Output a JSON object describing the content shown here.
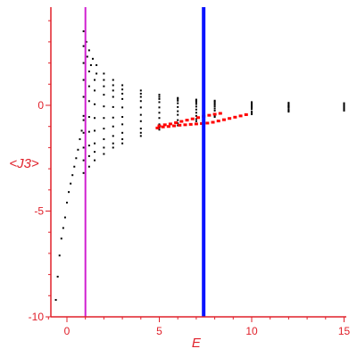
{
  "chart_data": {
    "type": "scatter",
    "xlabel": "E",
    "ylabel": "<J3>",
    "xlim": [
      -1,
      15.3
    ],
    "ylim": [
      -10,
      4.5
    ],
    "x_ticks": [
      {
        "value": 0,
        "label": "0"
      },
      {
        "value": 5,
        "label": "5"
      },
      {
        "value": 10,
        "label": "10"
      },
      {
        "value": 15,
        "label": "15"
      }
    ],
    "y_ticks": [
      {
        "value": 0,
        "label": "0"
      },
      {
        "value": -5,
        "label": "-5"
      },
      {
        "value": -10,
        "label": "-10"
      }
    ],
    "grid": false,
    "legend": "none",
    "colors": {
      "axis": "#e0202a",
      "points": "#000000",
      "highlight_points": "#ff0000",
      "line_a": "#d020d0",
      "line_b": "#0a14ff"
    },
    "vertical_lines": [
      {
        "x": 1.0,
        "color": "#d020d0"
      },
      {
        "x": 7.4,
        "color": "#0a14ff"
      }
    ],
    "series": [
      {
        "color": "#000000",
        "points": [
          [
            -0.6,
            -9.2
          ],
          [
            -0.5,
            -8.1
          ],
          [
            -0.4,
            -7.1
          ],
          [
            -0.3,
            -6.3
          ],
          [
            -0.2,
            -5.8
          ],
          [
            -0.1,
            -5.3
          ],
          [
            0,
            -4.6
          ],
          [
            0.1,
            -4.1
          ],
          [
            0.2,
            -3.7
          ],
          [
            0.3,
            -3.3
          ],
          [
            0.4,
            -2.9
          ],
          [
            0.5,
            -2.5
          ],
          [
            0.6,
            -2.1
          ],
          [
            0.7,
            -1.6
          ],
          [
            0.8,
            -1.2
          ],
          [
            0.9,
            -0.7
          ]
        ]
      },
      {
        "color": "#000000",
        "points": [
          [
            0.9,
            3.5
          ],
          [
            1.05,
            3.0
          ],
          [
            1.2,
            2.6
          ],
          [
            1.4,
            2.2
          ],
          [
            1.6,
            1.9
          ],
          [
            2.0,
            1.5
          ],
          [
            2.5,
            1.2
          ],
          [
            3.0,
            0.95
          ],
          [
            4.0,
            0.7
          ],
          [
            5.0,
            0.5
          ],
          [
            6.0,
            0.35
          ],
          [
            7.0,
            0.27
          ],
          [
            8.0,
            0.22
          ],
          [
            10.0,
            0.15
          ],
          [
            12.0,
            0.12
          ],
          [
            15.0,
            0.1
          ]
        ]
      },
      {
        "color": "#000000",
        "points": [
          [
            0.9,
            2.8
          ],
          [
            1.1,
            2.3
          ],
          [
            1.3,
            1.9
          ],
          [
            1.6,
            1.5
          ],
          [
            2.0,
            1.2
          ],
          [
            2.5,
            0.95
          ],
          [
            3.0,
            0.75
          ],
          [
            4.0,
            0.55
          ],
          [
            5.0,
            0.4
          ],
          [
            6.0,
            0.3
          ],
          [
            7.0,
            0.22
          ],
          [
            8.0,
            0.17
          ],
          [
            10.0,
            0.1
          ],
          [
            12.0,
            0.08
          ],
          [
            15.0,
            0.05
          ]
        ]
      },
      {
        "color": "#000000",
        "points": [
          [
            0.9,
            2.0
          ],
          [
            1.2,
            1.6
          ],
          [
            1.5,
            1.2
          ],
          [
            2.0,
            0.9
          ],
          [
            2.5,
            0.7
          ],
          [
            3.0,
            0.55
          ],
          [
            4.0,
            0.4
          ],
          [
            5.0,
            0.3
          ],
          [
            6.0,
            0.22
          ],
          [
            7.0,
            0.15
          ],
          [
            8.0,
            0.1
          ],
          [
            10.0,
            0.05
          ],
          [
            12.0,
            0.02
          ],
          [
            15.0,
            0.0
          ]
        ]
      },
      {
        "color": "#000000",
        "points": [
          [
            0.9,
            1.2
          ],
          [
            1.2,
            0.9
          ],
          [
            1.5,
            0.7
          ],
          [
            2.0,
            0.5
          ],
          [
            2.5,
            0.4
          ],
          [
            3.0,
            0.3
          ],
          [
            4.0,
            0.2
          ],
          [
            5.0,
            0.15
          ],
          [
            6.0,
            0.1
          ],
          [
            7.0,
            0.06
          ],
          [
            8.0,
            0.03
          ],
          [
            10.0,
            0.0
          ],
          [
            12.0,
            -0.02
          ],
          [
            15.0,
            -0.05
          ]
        ]
      },
      {
        "color": "#000000",
        "points": [
          [
            0.9,
            0.4
          ],
          [
            1.2,
            0.2
          ],
          [
            1.5,
            0.05
          ],
          [
            2.0,
            -0.05
          ],
          [
            2.5,
            -0.08
          ],
          [
            3.0,
            -0.1
          ],
          [
            4.0,
            -0.1
          ],
          [
            5.0,
            -0.1
          ],
          [
            6.0,
            -0.08
          ],
          [
            7.0,
            -0.06
          ],
          [
            8.0,
            -0.05
          ],
          [
            10.0,
            -0.05
          ],
          [
            12.0,
            -0.05
          ],
          [
            15.0,
            -0.05
          ]
        ]
      },
      {
        "color": "#000000",
        "points": [
          [
            0.9,
            -0.5
          ],
          [
            1.2,
            -0.55
          ],
          [
            1.5,
            -0.6
          ],
          [
            2.0,
            -0.6
          ],
          [
            2.5,
            -0.58
          ],
          [
            3.0,
            -0.55
          ],
          [
            4.0,
            -0.45
          ],
          [
            5.0,
            -0.35
          ],
          [
            6.0,
            -0.28
          ],
          [
            7.0,
            -0.2
          ],
          [
            8.0,
            -0.15
          ],
          [
            10.0,
            -0.1
          ],
          [
            12.0,
            -0.08
          ],
          [
            15.0,
            -0.07
          ]
        ]
      },
      {
        "color": "#000000",
        "points": [
          [
            0.9,
            -1.3
          ],
          [
            1.2,
            -1.25
          ],
          [
            1.5,
            -1.2
          ],
          [
            2.0,
            -1.1
          ],
          [
            2.5,
            -1.0
          ],
          [
            3.0,
            -0.9
          ],
          [
            4.0,
            -0.75
          ],
          [
            5.0,
            -0.6
          ],
          [
            6.0,
            -0.45
          ],
          [
            7.0,
            -0.35
          ],
          [
            8.0,
            -0.25
          ],
          [
            10.0,
            -0.18
          ],
          [
            12.0,
            -0.12
          ],
          [
            15.0,
            -0.1
          ]
        ]
      },
      {
        "color": "#000000",
        "points": [
          [
            0.9,
            -2.0
          ],
          [
            1.2,
            -1.9
          ],
          [
            1.5,
            -1.8
          ],
          [
            2.0,
            -1.6
          ],
          [
            2.5,
            -1.45
          ],
          [
            3.0,
            -1.3
          ],
          [
            4.0,
            -1.1
          ],
          [
            5.0,
            -0.9
          ],
          [
            6.0,
            -0.7
          ],
          [
            7.0,
            -0.5
          ],
          [
            8.0,
            -0.4
          ],
          [
            10.0,
            -0.3
          ],
          [
            12.0,
            -0.2
          ],
          [
            15.0,
            -0.15
          ]
        ]
      },
      {
        "color": "#000000",
        "points": [
          [
            0.9,
            -2.6
          ],
          [
            1.2,
            -2.4
          ],
          [
            1.5,
            -2.2
          ],
          [
            2.0,
            -2.0
          ],
          [
            2.5,
            -1.8
          ],
          [
            3.0,
            -1.6
          ],
          [
            4.0,
            -1.3
          ],
          [
            5.0,
            -1.05
          ],
          [
            6.0,
            -0.85
          ],
          [
            7.0,
            -0.65
          ],
          [
            8.0,
            -0.5
          ],
          [
            10.0,
            -0.38
          ],
          [
            12.0,
            -0.25
          ],
          [
            15.0,
            -0.2
          ]
        ]
      },
      {
        "color": "#000000",
        "points": [
          [
            0.9,
            -3.2
          ],
          [
            1.2,
            -2.9
          ],
          [
            1.5,
            -2.6
          ],
          [
            2.0,
            -2.3
          ],
          [
            2.5,
            -2.0
          ],
          [
            3.0,
            -1.8
          ],
          [
            4.0,
            -1.45
          ],
          [
            5.0,
            -1.15
          ],
          [
            6.0,
            -0.95
          ],
          [
            7.0,
            -0.75
          ],
          [
            8.0,
            -0.55
          ],
          [
            10.0,
            -0.42
          ],
          [
            12.0,
            -0.3
          ],
          [
            15.0,
            -0.25
          ]
        ]
      },
      {
        "color": "#ff0000",
        "points": [
          [
            4.9,
            -1.05
          ],
          [
            5.2,
            -1.0
          ],
          [
            5.5,
            -0.98
          ],
          [
            5.8,
            -0.95
          ],
          [
            6.1,
            -0.92
          ],
          [
            6.4,
            -0.9
          ],
          [
            6.7,
            -0.88
          ],
          [
            7.0,
            -0.86
          ],
          [
            7.3,
            -0.84
          ],
          [
            7.6,
            -0.82
          ],
          [
            7.9,
            -0.78
          ],
          [
            8.2,
            -0.72
          ],
          [
            8.5,
            -0.66
          ],
          [
            8.8,
            -0.6
          ],
          [
            9.1,
            -0.54
          ],
          [
            9.4,
            -0.48
          ],
          [
            9.7,
            -0.42
          ]
        ]
      },
      {
        "color": "#ff0000",
        "points": [
          [
            5.0,
            -0.95
          ],
          [
            5.3,
            -0.9
          ],
          [
            5.6,
            -0.86
          ],
          [
            5.9,
            -0.8
          ],
          [
            6.2,
            -0.74
          ],
          [
            6.5,
            -0.68
          ],
          [
            6.8,
            -0.62
          ],
          [
            7.1,
            -0.56
          ],
          [
            7.4,
            -0.5
          ],
          [
            7.7,
            -0.45
          ],
          [
            8.0,
            -0.4
          ],
          [
            8.3,
            -0.36
          ]
        ]
      }
    ]
  }
}
